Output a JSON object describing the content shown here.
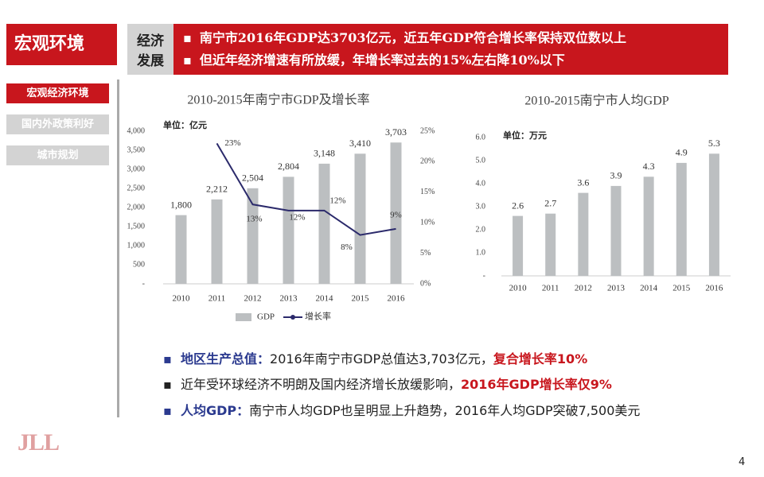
{
  "header": {
    "section": "宏观环境",
    "topic": [
      "经济",
      "发展"
    ],
    "points": [
      "南宁市2016年GDP达3703亿元，近五年GDP符合增长率保持双位数以上",
      "但近年经济增速有所放缓，年增长率过去的15%左右降10%以下"
    ]
  },
  "nav": [
    "宏观经济环境",
    "国内外政策利好",
    "城市规划"
  ],
  "chart_data": [
    {
      "type": "bar",
      "title": "2010-2015年南宁市GDP及增长率",
      "unit": "单位：亿元",
      "categories": [
        "2010",
        "2011",
        "2012",
        "2013",
        "2014",
        "2015",
        "2016"
      ],
      "series": [
        {
          "name": "GDP",
          "color": "#bcbfc1",
          "values": [
            1800,
            2212,
            2504,
            2804,
            3148,
            3410,
            3703
          ],
          "value_labels": [
            "1,800",
            "2,212",
            "2,504",
            "2,804",
            "3,148",
            "3,410",
            "3,703"
          ]
        },
        {
          "name": "增长率",
          "type": "line",
          "axis": "y2",
          "color": "#2b2a6b",
          "values": [
            null,
            23,
            13,
            12,
            12,
            8,
            9
          ],
          "value_labels": [
            null,
            "23%",
            "13%",
            "12%",
            "12%",
            "8%",
            "9%"
          ]
        }
      ],
      "ylim": [
        0,
        4000
      ],
      "yticks": [
        {
          "value": 0,
          "label": "-"
        },
        500,
        {
          "value": 1000,
          "label": "1,000"
        },
        {
          "value": 1500,
          "label": "1,500"
        },
        {
          "value": 2000,
          "label": "2,000"
        },
        {
          "value": 2500,
          "label": "2,500"
        },
        {
          "value": 3000,
          "label": "3,000"
        },
        {
          "value": 3500,
          "label": "3,500"
        },
        {
          "value": 4000,
          "label": "4,000"
        }
      ],
      "y2lim": [
        0,
        25
      ],
      "y2ticks": [
        {
          "value": 0,
          "label": "0%"
        },
        {
          "value": 5,
          "label": "5%"
        },
        {
          "value": 10,
          "label": "10%"
        },
        {
          "value": 15,
          "label": "15%"
        },
        {
          "value": 20,
          "label": "20%"
        },
        {
          "value": 25,
          "label": "25%"
        }
      ],
      "legend": "bottom"
    },
    {
      "type": "bar",
      "title": "2010-2015南宁市人均GDP",
      "unit": "单位：万元",
      "categories": [
        "2010",
        "2011",
        "2012",
        "2013",
        "2014",
        "2015",
        "2016"
      ],
      "values": [
        2.6,
        2.7,
        3.6,
        3.9,
        4.3,
        4.9,
        5.3
      ],
      "color": "#bcbfc1",
      "ylim": [
        0,
        6
      ],
      "yticks": [
        {
          "value": 0,
          "label": "-"
        },
        {
          "value": 1,
          "label": "1.0"
        },
        {
          "value": 2,
          "label": "2.0"
        },
        {
          "value": 3,
          "label": "3.0"
        },
        {
          "value": 4,
          "label": "4.0"
        },
        {
          "value": 5,
          "label": "5.0"
        },
        {
          "value": 6,
          "label": "6.0"
        }
      ]
    }
  ],
  "bullets": [
    [
      "地区生产总值：",
      "2016年南宁市GDP总值达3,703亿元，",
      "复合增长率10%"
    ],
    [
      "近年受环球经济不明朗及国内经济增长放缓影响，",
      "2016年GDP增长率仅9%"
    ],
    [
      "人均GDP：",
      "南宁市人均GDP也呈明显上升趋势，2016年人均GDP突破7,500美元"
    ]
  ],
  "page_number": "4",
  "logo": "JLL"
}
